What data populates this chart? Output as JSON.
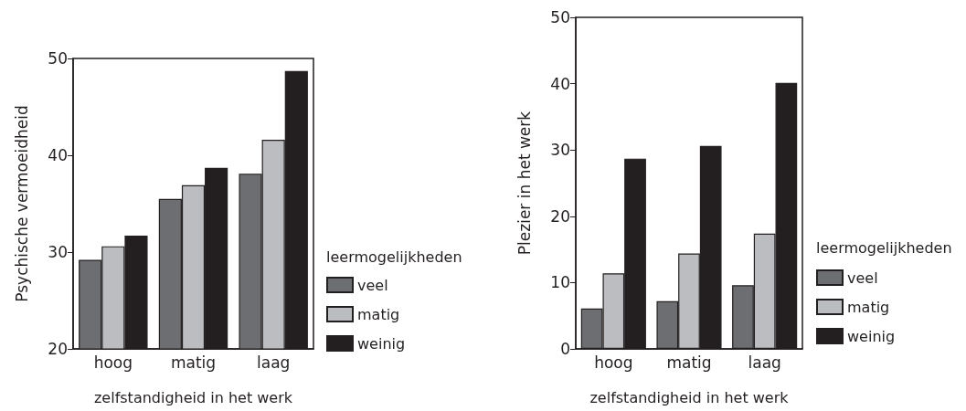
{
  "chart_data": [
    {
      "type": "bar",
      "categories": [
        "hoog",
        "matig",
        "laag"
      ],
      "xlabel": "zelfstandigheid in het werk",
      "ylabel": "Psychische vermoeidheid",
      "legend_title": "leermogelijkheden",
      "legend": "right",
      "grid": false,
      "ylim": [
        20,
        50
      ],
      "yticks": [
        20,
        30,
        40,
        50
      ],
      "series": [
        {
          "name": "veel",
          "color": "#6d6e72",
          "values": [
            29.2,
            35.5,
            38.1
          ]
        },
        {
          "name": "matig",
          "color": "#bcbdc0",
          "values": [
            30.6,
            36.9,
            41.6
          ]
        },
        {
          "name": "weinig",
          "color": "#231f20",
          "values": [
            31.7,
            38.7,
            48.7
          ]
        }
      ]
    },
    {
      "type": "bar",
      "categories": [
        "hoog",
        "matig",
        "laag"
      ],
      "xlabel": "zelfstandigheid in het werk",
      "ylabel": "Plezier in het werk",
      "legend_title": "leermogelijkheden",
      "legend": "right",
      "grid": false,
      "ylim": [
        0,
        50
      ],
      "yticks": [
        0,
        10,
        20,
        30,
        40,
        50
      ],
      "series": [
        {
          "name": "veel",
          "color": "#6d6e72",
          "values": [
            6.1,
            7.2,
            9.6
          ]
        },
        {
          "name": "matig",
          "color": "#bcbdc0",
          "values": [
            11.4,
            14.4,
            17.4
          ]
        },
        {
          "name": "weinig",
          "color": "#231f20",
          "values": [
            28.7,
            30.6,
            40.1
          ]
        }
      ]
    }
  ]
}
